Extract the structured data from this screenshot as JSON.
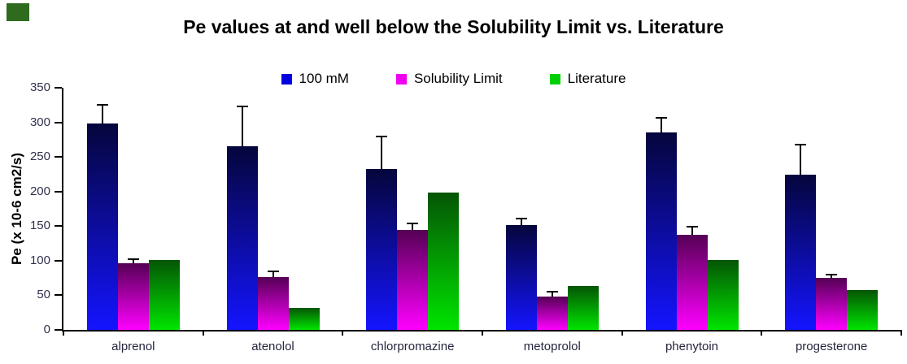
{
  "corner_accent_color": "#2e6b1f",
  "chart_data": {
    "type": "bar",
    "title": "Pe values at and well below the Solubility Limit vs. Literature",
    "ylabel": "Pe (x 10-6 cm2/s)",
    "xlabel": "",
    "ylim": [
      0,
      350
    ],
    "yticks": [
      0,
      50,
      100,
      150,
      200,
      250,
      300,
      350
    ],
    "grid": false,
    "legend_position": "top",
    "error_bar_color": "#000000",
    "categories": [
      "alprenol",
      "atenolol",
      "chlorpromazine",
      "metoprolol",
      "phenytoin",
      "progesterone"
    ],
    "series": [
      {
        "name": "100 mM",
        "legend_color": "#0000e0",
        "gradient_top": "#05053c",
        "gradient_bottom": "#1414ff",
        "values": [
          298,
          265,
          232,
          151,
          286,
          224
        ],
        "error_plus": [
          26,
          57,
          46,
          9,
          19,
          43
        ]
      },
      {
        "name": "Solubility Limit",
        "legend_color": "#f000f0",
        "gradient_top": "#550055",
        "gradient_bottom": "#ff00ff",
        "values": [
          96,
          76,
          144,
          48,
          138,
          75
        ],
        "error_plus": [
          5,
          7,
          9,
          6,
          10,
          4
        ]
      },
      {
        "name": "Literature",
        "legend_color": "#00d000",
        "gradient_top": "#055505",
        "gradient_bottom": "#00e400",
        "values": [
          101,
          32,
          199,
          64,
          101,
          58
        ],
        "error_plus": [
          0,
          0,
          0,
          0,
          0,
          0
        ]
      }
    ]
  }
}
